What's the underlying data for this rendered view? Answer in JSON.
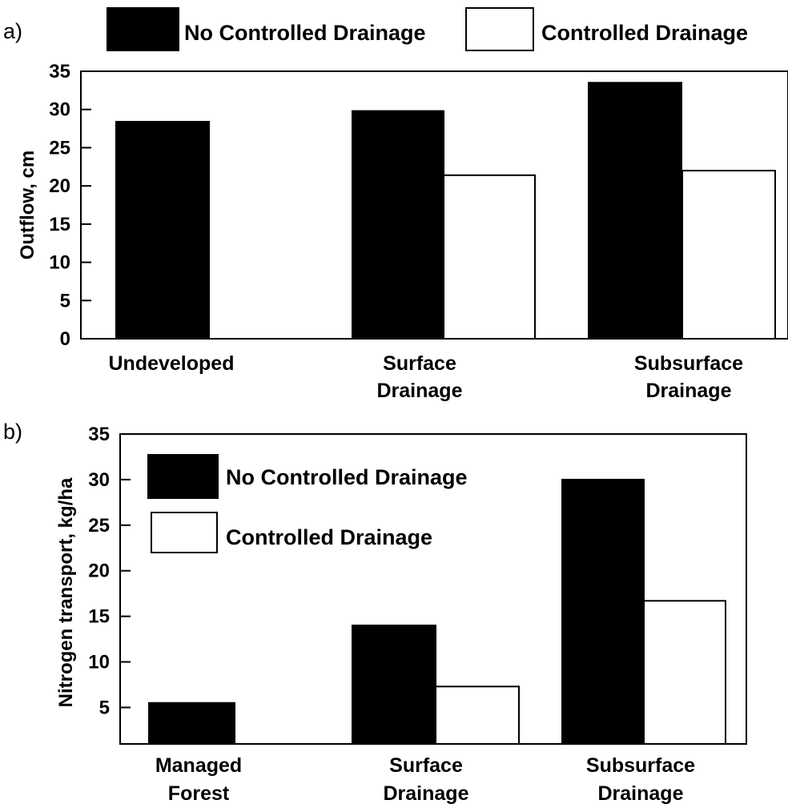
{
  "chart_data": [
    {
      "type": "bar",
      "panel_label": "a)",
      "categories": [
        [
          "Undeveloped"
        ],
        [
          "Surface",
          "Drainage"
        ],
        [
          "Subsurface",
          "Drainage"
        ]
      ],
      "series": [
        {
          "name": "No Controlled Drainage",
          "values": [
            28.4,
            29.8,
            33.5
          ],
          "color": "#000000"
        },
        {
          "name": "Controlled Drainage",
          "values": [
            null,
            21.4,
            22.0
          ],
          "color": "#ffffff"
        }
      ],
      "ylabel": "Outflow, cm",
      "ylim": [
        0,
        35
      ],
      "yticks": [
        0,
        5,
        10,
        15,
        20,
        25,
        30,
        35
      ],
      "legend_position": "top, outside the plot"
    },
    {
      "type": "bar",
      "panel_label": "b)",
      "categories": [
        [
          "Managed",
          "Forest"
        ],
        [
          "Surface",
          "Drainage"
        ],
        [
          "Subsurface",
          "Drainage"
        ]
      ],
      "series": [
        {
          "name": "No Controlled Drainage",
          "values": [
            5.5,
            14.0,
            30.0
          ],
          "color": "#000000"
        },
        {
          "name": "Controlled Drainage",
          "values": [
            null,
            7.3,
            16.7
          ],
          "color": "#ffffff"
        }
      ],
      "ylabel": "Nitrogen transport, kg/ha",
      "ylim": [
        1,
        35
      ],
      "yticks": [
        5,
        10,
        15,
        20,
        25,
        30,
        35
      ],
      "legend_position": "top-left, inside the plot"
    }
  ]
}
